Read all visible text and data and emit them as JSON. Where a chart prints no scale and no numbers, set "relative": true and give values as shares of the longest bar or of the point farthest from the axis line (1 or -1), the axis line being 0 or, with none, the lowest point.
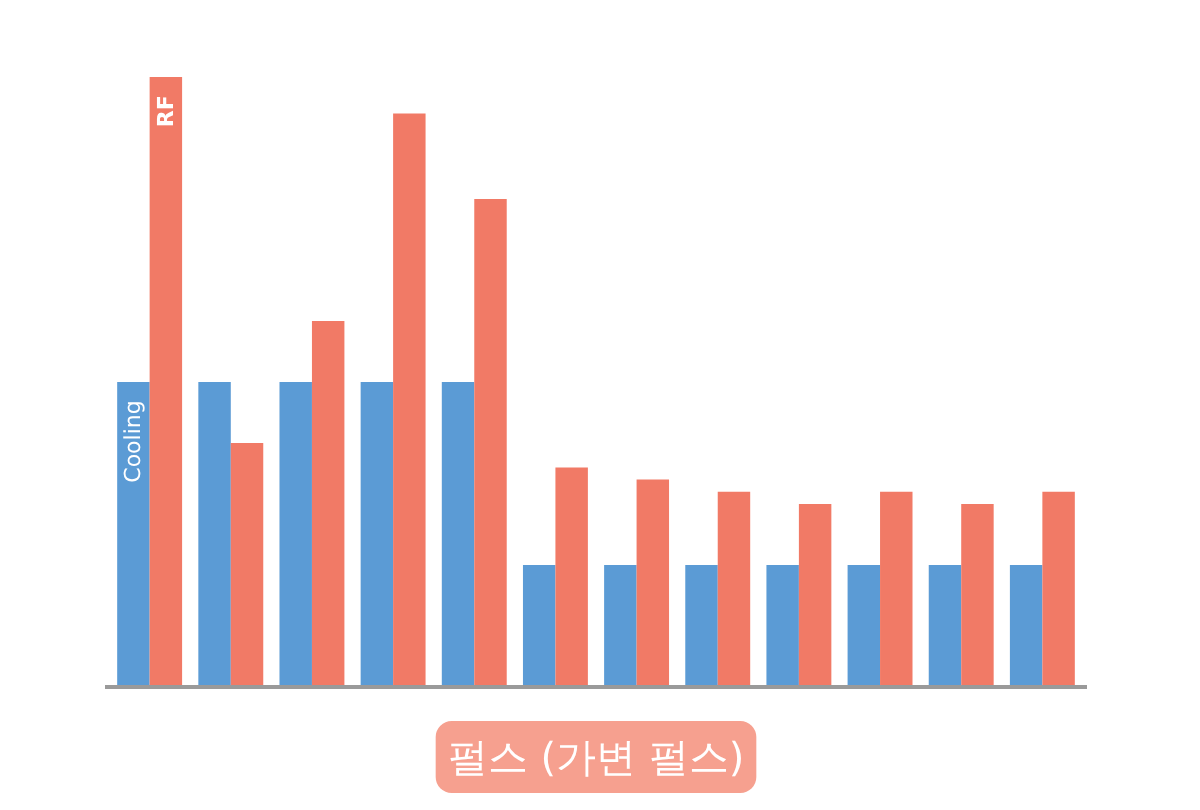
{
  "chart_data": {
    "type": "bar",
    "title": "펄스 (가변 펄스)",
    "relative": true,
    "categories": [
      null,
      null,
      null,
      null,
      null,
      null,
      null,
      null,
      null,
      null,
      null,
      null
    ],
    "series": [
      {
        "name": "Cooling",
        "color": "#5b9bd5",
        "values": [
          0.5,
          0.5,
          0.5,
          0.5,
          0.5,
          0.2,
          0.2,
          0.2,
          0.2,
          0.2,
          0.2,
          0.2
        ]
      },
      {
        "name": "RF",
        "color": "#f17a66",
        "values": [
          1.0,
          0.4,
          0.6,
          0.94,
          0.8,
          0.36,
          0.34,
          0.32,
          0.3,
          0.32,
          0.3,
          0.32
        ]
      }
    ]
  }
}
